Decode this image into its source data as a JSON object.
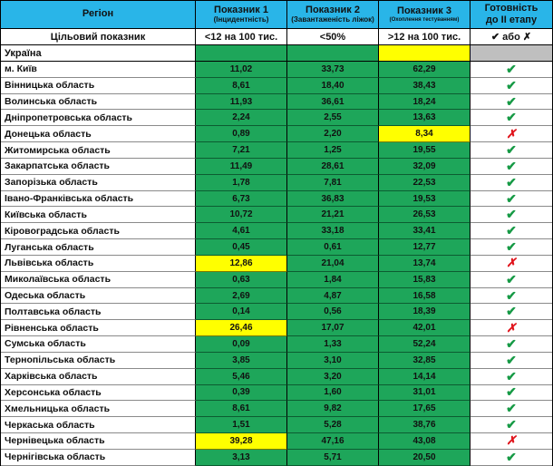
{
  "colors": {
    "header_blue": "#29b5e8",
    "cell_green": "#1ea65a",
    "highlight_yellow": "#ffff00",
    "na_gray": "#bfbfbf",
    "check_green": "#169a45",
    "cross_red": "#e0131b"
  },
  "table": {
    "header": {
      "region": "Регіон",
      "col1_title": "Показник 1",
      "col1_sub": "(Інцидентність)",
      "col2_title": "Показник 2",
      "col2_sub": "(Завантаженість ліжок)",
      "col3_title": "Показник 3",
      "col3_sub": "(Охоплення тестуванням)",
      "readiness_line1": "Готовність",
      "readiness_line2": "до ІІ етапу"
    },
    "target_row": {
      "label": "Цільовий показник",
      "col1": "<12 на 100 тис.",
      "col2": "<50%",
      "col3": ">12 на 100 тис.",
      "readiness": "✔ або ✗"
    },
    "ukraine_row": {
      "label": "Україна",
      "cell_colors": [
        "green",
        "green",
        "yellow",
        "gray"
      ]
    },
    "check_glyph": "✔",
    "cross_glyph": "✗",
    "rows": [
      {
        "region": "м. Київ",
        "v1": "11,02",
        "v1_bg": "green",
        "v2": "33,73",
        "v3": "62,29",
        "v3_bg": "green",
        "ready": "yes"
      },
      {
        "region": "Вінницька область",
        "v1": "8,61",
        "v1_bg": "green",
        "v2": "18,40",
        "v3": "38,43",
        "v3_bg": "green",
        "ready": "yes"
      },
      {
        "region": "Волинська область",
        "v1": "11,93",
        "v1_bg": "green",
        "v2": "36,61",
        "v3": "18,24",
        "v3_bg": "green",
        "ready": "yes"
      },
      {
        "region": "Дніпропетровська область",
        "v1": "2,24",
        "v1_bg": "green",
        "v2": "2,55",
        "v3": "13,63",
        "v3_bg": "green",
        "ready": "yes"
      },
      {
        "region": "Донецька область",
        "v1": "0,89",
        "v1_bg": "green",
        "v2": "2,20",
        "v3": "8,34",
        "v3_bg": "yellow",
        "ready": "no"
      },
      {
        "region": "Житомирська область",
        "v1": "7,21",
        "v1_bg": "green",
        "v2": "1,25",
        "v3": "19,55",
        "v3_bg": "green",
        "ready": "yes"
      },
      {
        "region": "Закарпатська область",
        "v1": "11,49",
        "v1_bg": "green",
        "v2": "28,61",
        "v3": "32,09",
        "v3_bg": "green",
        "ready": "yes"
      },
      {
        "region": "Запорізька область",
        "v1": "1,78",
        "v1_bg": "green",
        "v2": "7,81",
        "v3": "22,53",
        "v3_bg": "green",
        "ready": "yes"
      },
      {
        "region": "Івано-Франківська область",
        "v1": "6,73",
        "v1_bg": "green",
        "v2": "36,83",
        "v3": "19,53",
        "v3_bg": "green",
        "ready": "yes"
      },
      {
        "region": "Київська область",
        "v1": "10,72",
        "v1_bg": "green",
        "v2": "21,21",
        "v3": "26,53",
        "v3_bg": "green",
        "ready": "yes"
      },
      {
        "region": "Кіровоградська область",
        "v1": "4,61",
        "v1_bg": "green",
        "v2": "33,18",
        "v3": "33,41",
        "v3_bg": "green",
        "ready": "yes"
      },
      {
        "region": "Луганська область",
        "v1": "0,45",
        "v1_bg": "green",
        "v2": "0,61",
        "v3": "12,77",
        "v3_bg": "green",
        "ready": "yes"
      },
      {
        "region": "Львівська область",
        "v1": "12,86",
        "v1_bg": "yellow",
        "v2": "21,04",
        "v3": "13,74",
        "v3_bg": "green",
        "ready": "no"
      },
      {
        "region": "Миколаївська область",
        "v1": "0,63",
        "v1_bg": "green",
        "v2": "1,84",
        "v3": "15,83",
        "v3_bg": "green",
        "ready": "yes"
      },
      {
        "region": "Одеська область",
        "v1": "2,69",
        "v1_bg": "green",
        "v2": "4,87",
        "v3": "16,58",
        "v3_bg": "green",
        "ready": "yes"
      },
      {
        "region": "Полтавська область",
        "v1": "0,14",
        "v1_bg": "green",
        "v2": "0,56",
        "v3": "18,39",
        "v3_bg": "green",
        "ready": "yes"
      },
      {
        "region": "Рівненська область",
        "v1": "26,46",
        "v1_bg": "yellow",
        "v2": "17,07",
        "v3": "42,01",
        "v3_bg": "green",
        "ready": "no"
      },
      {
        "region": "Сумська область",
        "v1": "0,09",
        "v1_bg": "green",
        "v2": "1,33",
        "v3": "52,24",
        "v3_bg": "green",
        "ready": "yes"
      },
      {
        "region": "Тернопільська область",
        "v1": "3,85",
        "v1_bg": "green",
        "v2": "3,10",
        "v3": "32,85",
        "v3_bg": "green",
        "ready": "yes"
      },
      {
        "region": "Харківська область",
        "v1": "5,46",
        "v1_bg": "green",
        "v2": "3,20",
        "v3": "14,14",
        "v3_bg": "green",
        "ready": "yes"
      },
      {
        "region": "Херсонська область",
        "v1": "0,39",
        "v1_bg": "green",
        "v2": "1,60",
        "v3": "31,01",
        "v3_bg": "green",
        "ready": "yes"
      },
      {
        "region": "Хмельницька область",
        "v1": "8,61",
        "v1_bg": "green",
        "v2": "9,82",
        "v3": "17,65",
        "v3_bg": "green",
        "ready": "yes"
      },
      {
        "region": "Черкаська область",
        "v1": "1,51",
        "v1_bg": "green",
        "v2": "5,28",
        "v3": "38,76",
        "v3_bg": "green",
        "ready": "yes"
      },
      {
        "region": "Чернівецька область",
        "v1": "39,28",
        "v1_bg": "yellow",
        "v2": "47,16",
        "v3": "43,08",
        "v3_bg": "green",
        "ready": "no"
      },
      {
        "region": "Чернігівська область",
        "v1": "3,13",
        "v1_bg": "green",
        "v2": "5,71",
        "v3": "20,50",
        "v3_bg": "green",
        "ready": "yes"
      }
    ]
  }
}
